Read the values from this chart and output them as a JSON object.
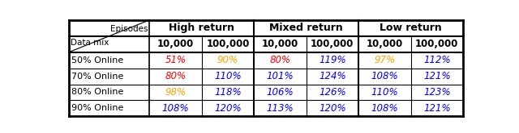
{
  "col_groups": [
    "High return",
    "Mixed return",
    "Low return"
  ],
  "sub_cols": [
    "10,000",
    "100,000"
  ],
  "row_labels": [
    "50% Online",
    "70% Online",
    "80% Online",
    "90% Online"
  ],
  "data": [
    [
      "51%",
      "90%",
      "80%",
      "119%",
      "97%",
      "112%"
    ],
    [
      "80%",
      "110%",
      "101%",
      "124%",
      "108%",
      "121%"
    ],
    [
      "98%",
      "118%",
      "106%",
      "126%",
      "110%",
      "123%"
    ],
    [
      "108%",
      "120%",
      "113%",
      "120%",
      "108%",
      "121%"
    ]
  ],
  "colors": [
    [
      "red",
      "orange",
      "red",
      "blue",
      "orange",
      "blue"
    ],
    [
      "red",
      "blue",
      "blue",
      "blue",
      "blue",
      "blue"
    ],
    [
      "orange",
      "blue",
      "blue",
      "blue",
      "blue",
      "blue"
    ],
    [
      "blue",
      "blue",
      "blue",
      "blue",
      "blue",
      "blue"
    ]
  ],
  "header_episodes": "Episodes",
  "header_datamix": "Data mix",
  "bg_color": "#ffffff"
}
